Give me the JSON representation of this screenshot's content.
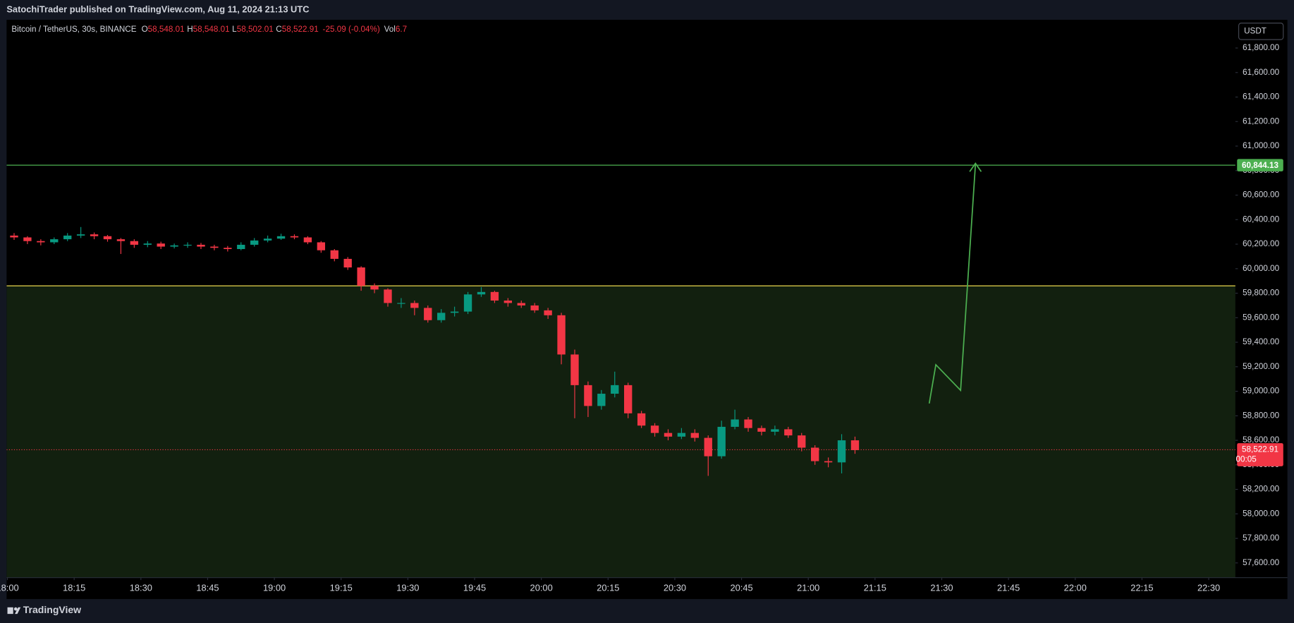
{
  "header": {
    "title": "SatochiTrader published on TradingView.com, Aug 11, 2024 21:13 UTC",
    "brand": "TradingView"
  },
  "legend": {
    "symbol": "Bitcoin / TetherUS, 30s, BINANCE",
    "o": "O",
    "open": "58,548.01",
    "h": "H",
    "high": "58,548.01",
    "l": "L",
    "low": "58,502.01",
    "c": "C",
    "close": "58,522.91",
    "change": "-25.09 (-0.04%)",
    "vol": "Vol",
    "volume": "6.7"
  },
  "currency": "USDT",
  "chart_data": {
    "type": "candlestick",
    "x": [
      "18:00",
      "18:03",
      "18:06",
      "18:09",
      "18:12",
      "18:15",
      "18:18",
      "18:21",
      "18:24",
      "18:27",
      "18:30",
      "18:33",
      "18:36",
      "18:39",
      "18:42",
      "18:45",
      "18:48",
      "18:51",
      "18:54",
      "18:57",
      "19:00",
      "19:03",
      "19:06",
      "19:09",
      "19:12",
      "19:15",
      "19:18",
      "19:21",
      "19:24",
      "19:27",
      "19:30",
      "19:33",
      "19:36",
      "19:39",
      "19:42",
      "19:45",
      "19:48",
      "19:51",
      "19:54",
      "19:57",
      "20:00",
      "20:03",
      "20:06",
      "20:09",
      "20:12",
      "20:15",
      "20:18",
      "20:21",
      "20:24",
      "20:27",
      "20:30",
      "20:33",
      "20:36",
      "20:39",
      "20:42",
      "20:45",
      "20:48",
      "20:51",
      "20:54",
      "20:57",
      "21:00",
      "21:03",
      "21:06",
      "21:09"
    ],
    "open": [
      60270,
      60255,
      60225,
      60215,
      60240,
      60270,
      60280,
      60265,
      60240,
      60225,
      60195,
      60205,
      60180,
      60190,
      60195,
      60180,
      60170,
      60160,
      60195,
      60230,
      60245,
      60265,
      60255,
      60215,
      60150,
      60080,
      60010,
      59860,
      59830,
      59720,
      59720,
      59680,
      59580,
      59640,
      59650,
      59790,
      59810,
      59740,
      59720,
      59700,
      59660,
      59620,
      59300,
      59050,
      58880,
      58980,
      59050,
      58820,
      58720,
      58660,
      58630,
      58660,
      58620,
      58470,
      58710,
      58770,
      58700,
      58670,
      58690,
      58640,
      58540,
      58430,
      58420,
      58600
    ],
    "high": [
      60290,
      60265,
      60240,
      60255,
      60290,
      60340,
      60295,
      60275,
      60250,
      60240,
      60225,
      60220,
      60205,
      60215,
      60210,
      60195,
      60185,
      60215,
      60250,
      60270,
      60285,
      60280,
      60265,
      60225,
      60160,
      60095,
      60020,
      59880,
      59840,
      59760,
      59740,
      59700,
      59670,
      59690,
      59810,
      59850,
      59820,
      59760,
      59740,
      59720,
      59680,
      59640,
      59340,
      59080,
      59010,
      59160,
      59070,
      58840,
      58740,
      58690,
      58700,
      58690,
      58640,
      58760,
      58850,
      58790,
      58720,
      58720,
      58710,
      58660,
      58560,
      58460,
      58650,
      58630
    ],
    "low": [
      60235,
      60200,
      60190,
      60200,
      60225,
      60250,
      60240,
      60220,
      60120,
      60170,
      60175,
      60160,
      60165,
      60170,
      60160,
      60150,
      60140,
      60150,
      60180,
      60215,
      60235,
      60240,
      60200,
      60130,
      60060,
      59990,
      59820,
      59800,
      59690,
      59680,
      59620,
      59560,
      59560,
      59610,
      59630,
      59770,
      59720,
      59690,
      59680,
      59640,
      59590,
      59220,
      58780,
      58790,
      58850,
      58950,
      58780,
      58700,
      58630,
      58600,
      58610,
      58590,
      58310,
      58450,
      58690,
      58670,
      58640,
      58640,
      58620,
      58510,
      58400,
      58380,
      58330,
      58490
    ],
    "close": [
      60255,
      60225,
      60215,
      60240,
      60270,
      60280,
      60265,
      60240,
      60225,
      60195,
      60205,
      60180,
      60190,
      60195,
      60180,
      60170,
      60160,
      60195,
      60230,
      60245,
      60265,
      60255,
      60215,
      60150,
      60080,
      60010,
      59860,
      59830,
      59720,
      59720,
      59680,
      59580,
      59640,
      59650,
      59790,
      59810,
      59740,
      59720,
      59700,
      59660,
      59620,
      59300,
      59050,
      58880,
      58980,
      59050,
      58820,
      58720,
      58660,
      58630,
      58660,
      58620,
      58470,
      58710,
      58770,
      58700,
      58670,
      58690,
      58640,
      58540,
      58430,
      58420,
      58600,
      58520
    ],
    "up_color": "#089981",
    "down_color": "#f23645",
    "xlim": [
      "18:00",
      "22:36"
    ],
    "xticks": [
      "18:00",
      "18:15",
      "18:30",
      "18:45",
      "19:00",
      "19:15",
      "19:30",
      "19:45",
      "20:00",
      "20:15",
      "20:30",
      "20:45",
      "21:00",
      "21:15",
      "21:30",
      "21:45",
      "22:00",
      "22:15",
      "22:30"
    ],
    "ylim": [
      57480,
      62030
    ],
    "yticks": [
      {
        "value": 57600,
        "label": "57,600.00"
      },
      {
        "value": 57800,
        "label": "57,800.00"
      },
      {
        "value": 58000,
        "label": "58,000.00"
      },
      {
        "value": 58200,
        "label": "58,200.00"
      },
      {
        "value": 58400,
        "label": "58,400.00"
      },
      {
        "value": 58600,
        "label": "58,600.00"
      },
      {
        "value": 58800,
        "label": "58,800.00"
      },
      {
        "value": 59000,
        "label": "59,000.00"
      },
      {
        "value": 59200,
        "label": "59,200.00"
      },
      {
        "value": 59400,
        "label": "59,400.00"
      },
      {
        "value": 59600,
        "label": "59,600.00"
      },
      {
        "value": 59800,
        "label": "59,800.00"
      },
      {
        "value": 60000,
        "label": "60,000.00"
      },
      {
        "value": 60200,
        "label": "60,200.00"
      },
      {
        "value": 60400,
        "label": "60,400.00"
      },
      {
        "value": 60600,
        "label": "60,600.00"
      },
      {
        "value": 60800,
        "label": "60,800.00"
      },
      {
        "value": 61000,
        "label": "61,000.00"
      },
      {
        "value": 61200,
        "label": "61,200.00"
      },
      {
        "value": 61400,
        "label": "61,400.00"
      },
      {
        "value": 61600,
        "label": "61,600.00"
      },
      {
        "value": 61800,
        "label": "61,800.00"
      }
    ],
    "grid": false,
    "zone": {
      "value": 59860,
      "color": "#e8d44d",
      "fill": "#12200f"
    },
    "target": {
      "value": 60844.13,
      "label": "60,844.13",
      "color": "#4caf50"
    },
    "last": {
      "value": 58522.91,
      "label": "58,522.91",
      "countdown": "00:05",
      "color": "#f23645"
    }
  }
}
